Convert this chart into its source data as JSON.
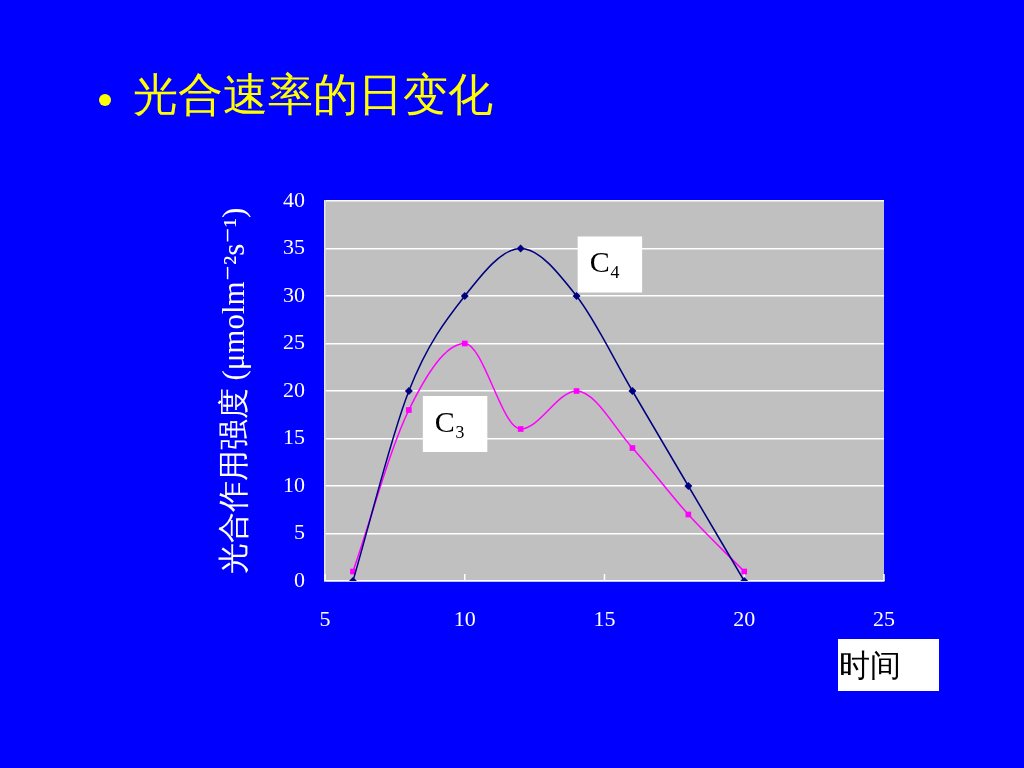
{
  "chart_data": {
    "type": "line",
    "title": "光合速率的日变化",
    "xlabel": "时间",
    "ylabel": "光合作用强度 (μmolm⁻²s⁻¹)",
    "x": [
      6,
      8,
      10,
      12,
      14,
      16,
      18,
      20
    ],
    "series": [
      {
        "name": "C₄",
        "color": "#000080",
        "marker": "diamond",
        "values": [
          0,
          20,
          30,
          35,
          30,
          20,
          10,
          0
        ]
      },
      {
        "name": "C₃",
        "color": "#ff00ff",
        "marker": "square",
        "values": [
          1,
          18,
          25,
          16,
          20,
          14,
          7,
          1
        ]
      }
    ],
    "xlim": [
      5,
      25
    ],
    "ylim": [
      0,
      40
    ],
    "xticks": [
      5,
      10,
      15,
      20,
      25
    ],
    "yticks": [
      0,
      5,
      10,
      15,
      20,
      25,
      30,
      35,
      40
    ],
    "grid": "y"
  }
}
